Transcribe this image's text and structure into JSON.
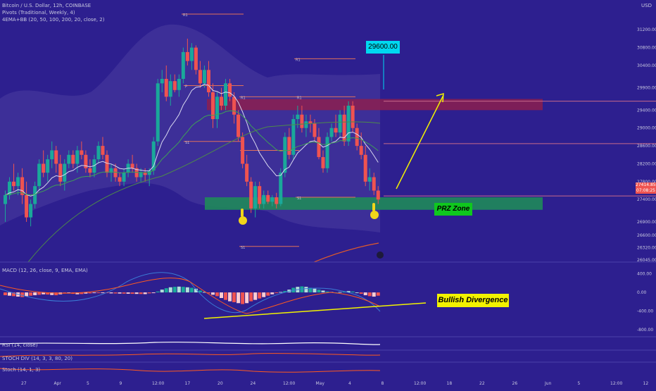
{
  "header": {
    "symbol_line": "Bitcoin / U.S. Dollar, 12h, COINBASE",
    "indicators": [
      "Pivots (Traditional, Weekly, 4)",
      "4EMA+BB (20, 50, 100, 200, 20, close, 2)"
    ]
  },
  "currency": "USD",
  "annotations": {
    "target_price": "29600.00",
    "prz_label": "PRZ Zone",
    "divergence_label": "Bullish Divergence"
  },
  "pivots": {
    "r1": "R1",
    "p": "P",
    "s1": "S1"
  },
  "price_tags": {
    "last_price": "27414.85",
    "countdown": "07:08:25"
  },
  "panels": {
    "macd_label": "MACD (12, 26, close, 9, EMA, EMA)",
    "rsi_label": "RSI (14, close)",
    "stoch_label": "STOCH DIV (14, 3, 3, 80, 20)",
    "stoch2_label": "Stoch (14, 1, 3)"
  },
  "colors": {
    "background": "#2d1f8f",
    "bull": "#1aa89a",
    "bear": "#ef5350",
    "prz_zone": "#1f8a5a",
    "resistance_zone": "#8c1e4f",
    "ema_fast": "#d8d8f0",
    "ema_slow": "#3f9f57",
    "macd_line": "#3a7bd5",
    "signal_line": "#ff5a1f",
    "arrow": "#f2f200"
  },
  "chart_data": [
    {
      "type": "candlestick",
      "title": "Bitcoin / U.S. Dollar, 12h, COINBASE",
      "y_axis": {
        "ticks": [
          31200.0,
          30800.0,
          30400.0,
          29900.0,
          29400.0,
          29000.0,
          28600.0,
          28200.0,
          27800.0,
          27400.0,
          26900.0,
          26600.0,
          26320.0,
          26045.0
        ],
        "tick_labels": [
          "31200.00",
          "30800.00",
          "30400.00",
          "29900.00",
          "29400.00",
          "29000.00",
          "28600.00",
          "28200.00",
          "27800.00",
          "27400.00",
          "26900.00",
          "26600.00",
          "26320.00",
          "26045.00"
        ],
        "ylim": [
          26000,
          31550
        ]
      },
      "x_axis": {
        "tick_labels": [
          "27",
          "Apr",
          "5",
          "9",
          "12:00",
          "17",
          "20",
          "24",
          "12:00",
          "May",
          "4",
          "8",
          "12:00",
          "18",
          "22",
          "26",
          "Jun",
          "5",
          "12:00",
          "12"
        ]
      },
      "ohlc": [
        [
          27300,
          27600,
          26900,
          27500
        ],
        [
          27500,
          27900,
          27400,
          27800
        ],
        [
          27800,
          28200,
          27600,
          27700
        ],
        [
          27700,
          28000,
          27500,
          27900
        ],
        [
          27900,
          28100,
          27300,
          27500
        ],
        [
          27500,
          27800,
          26900,
          27000
        ],
        [
          27000,
          27400,
          26800,
          27300
        ],
        [
          27300,
          27800,
          27200,
          27700
        ],
        [
          27700,
          28300,
          27600,
          28200
        ],
        [
          28200,
          28500,
          27900,
          28000
        ],
        [
          28000,
          28400,
          27800,
          28300
        ],
        [
          28300,
          28700,
          28100,
          28500
        ],
        [
          28500,
          28600,
          28000,
          28200
        ],
        [
          28200,
          28400,
          27700,
          27800
        ],
        [
          27800,
          28300,
          27600,
          28200
        ],
        [
          28200,
          28500,
          28100,
          28400
        ],
        [
          28400,
          28500,
          28100,
          28200
        ],
        [
          28200,
          28600,
          28000,
          28500
        ],
        [
          28500,
          28700,
          28300,
          28400
        ],
        [
          28400,
          28500,
          28000,
          28100
        ],
        [
          28100,
          28300,
          27900,
          28000
        ],
        [
          28000,
          28400,
          27900,
          28300
        ],
        [
          28300,
          28700,
          28200,
          28600
        ],
        [
          28600,
          28800,
          28300,
          28400
        ],
        [
          28400,
          28500,
          27900,
          28000
        ],
        [
          28000,
          28200,
          27800,
          28100
        ],
        [
          28100,
          28200,
          27800,
          27900
        ],
        [
          27900,
          28000,
          27700,
          27800
        ],
        [
          27800,
          28100,
          27700,
          28000
        ],
        [
          28000,
          28300,
          27900,
          28200
        ],
        [
          28200,
          28400,
          28000,
          28100
        ],
        [
          28100,
          28200,
          27800,
          27900
        ],
        [
          27900,
          28100,
          27800,
          28000
        ],
        [
          28000,
          28100,
          27800,
          27950
        ],
        [
          27950,
          28100,
          27700,
          28050
        ],
        [
          28050,
          28800,
          27950,
          28700
        ],
        [
          28700,
          30100,
          28600,
          30000
        ],
        [
          30000,
          30300,
          29800,
          30100
        ],
        [
          30100,
          30400,
          29600,
          29700
        ],
        [
          29700,
          30200,
          29500,
          30050
        ],
        [
          30050,
          30200,
          29800,
          29850
        ],
        [
          29850,
          30200,
          29700,
          30100
        ],
        [
          30100,
          30800,
          30000,
          30700
        ],
        [
          30700,
          31000,
          30400,
          30500
        ],
        [
          30500,
          30900,
          30300,
          30800
        ],
        [
          30800,
          30850,
          30200,
          30300
        ],
        [
          30300,
          30500,
          29900,
          30000
        ],
        [
          30000,
          30400,
          29900,
          30300
        ],
        [
          30300,
          30500,
          29700,
          29800
        ],
        [
          29800,
          30000,
          29000,
          29200
        ],
        [
          29200,
          29800,
          29000,
          29700
        ],
        [
          29700,
          29900,
          29400,
          29500
        ],
        [
          29500,
          30100,
          29400,
          30000
        ],
        [
          30000,
          30100,
          29600,
          29700
        ],
        [
          29700,
          29800,
          29100,
          29300
        ],
        [
          29300,
          29400,
          28700,
          28800
        ],
        [
          28800,
          28900,
          28100,
          28200
        ],
        [
          28200,
          28400,
          27700,
          27800
        ],
        [
          27800,
          27900,
          27100,
          27200
        ],
        [
          27200,
          27800,
          27000,
          27700
        ],
        [
          27700,
          27800,
          27200,
          27300
        ],
        [
          27300,
          27600,
          27200,
          27500
        ],
        [
          27500,
          27600,
          27300,
          27350
        ],
        [
          27350,
          27500,
          27250,
          27450
        ],
        [
          27450,
          27550,
          27200,
          27300
        ],
        [
          27300,
          28100,
          27250,
          28000
        ],
        [
          28000,
          28900,
          27900,
          28800
        ],
        [
          28800,
          29000,
          28300,
          28400
        ],
        [
          28400,
          29300,
          28300,
          29200
        ],
        [
          29200,
          29500,
          29000,
          29300
        ],
        [
          29300,
          29500,
          28900,
          29000
        ],
        [
          29000,
          29300,
          28800,
          29150
        ],
        [
          29150,
          29300,
          28900,
          29100
        ],
        [
          29100,
          29200,
          28700,
          28800
        ],
        [
          28800,
          29000,
          28300,
          28350
        ],
        [
          28350,
          28500,
          28000,
          28100
        ],
        [
          28100,
          28900,
          28000,
          28800
        ],
        [
          28800,
          29100,
          28700,
          29000
        ],
        [
          29000,
          29300,
          28800,
          28900
        ],
        [
          28900,
          29400,
          28800,
          29300
        ],
        [
          29300,
          29500,
          28600,
          28700
        ],
        [
          28700,
          29600,
          28600,
          29500
        ],
        [
          29500,
          29600,
          28900,
          29000
        ],
        [
          29000,
          29100,
          28500,
          28600
        ],
        [
          28600,
          28900,
          28300,
          28400
        ],
        [
          28400,
          28600,
          27700,
          27800
        ],
        [
          27800,
          28100,
          27600,
          27900
        ],
        [
          27900,
          28000,
          27500,
          27600
        ],
        [
          27600,
          27700,
          27300,
          27400
        ]
      ]
    },
    {
      "type": "bar",
      "title": "MACD (12, 26, close, 9, EMA, EMA)",
      "y_axis": {
        "ticks": [
          400.0,
          0.0,
          -400.0,
          -800.0
        ],
        "tick_labels": [
          "400.00",
          "0.00",
          "-400.00",
          "-800.00"
        ],
        "ylim": [
          -800,
          500
        ]
      },
      "values": [
        -60,
        -70,
        -80,
        -90,
        -100,
        -80,
        -70,
        -60,
        -50,
        -40,
        -45,
        -55,
        -60,
        -40,
        -20,
        -10,
        -30,
        -40,
        -35,
        -25,
        -20,
        -15,
        -10,
        -12,
        -14,
        -20,
        -22,
        -24,
        -26,
        -28,
        -30,
        -32,
        -34,
        -36,
        -20,
        -5,
        20,
        60,
        90,
        110,
        120,
        125,
        120,
        110,
        100,
        80,
        40,
        10,
        -20,
        -50,
        -80,
        -120,
        -160,
        -190,
        -210,
        -230,
        -250,
        -230,
        -190,
        -160,
        -130,
        -100,
        -70,
        -40,
        -10,
        10,
        30,
        60,
        100,
        120,
        130,
        120,
        100,
        80,
        60,
        40,
        20,
        10,
        0,
        10,
        20,
        30,
        20,
        0,
        -30,
        -60,
        -80,
        -90,
        -70
      ]
    }
  ]
}
